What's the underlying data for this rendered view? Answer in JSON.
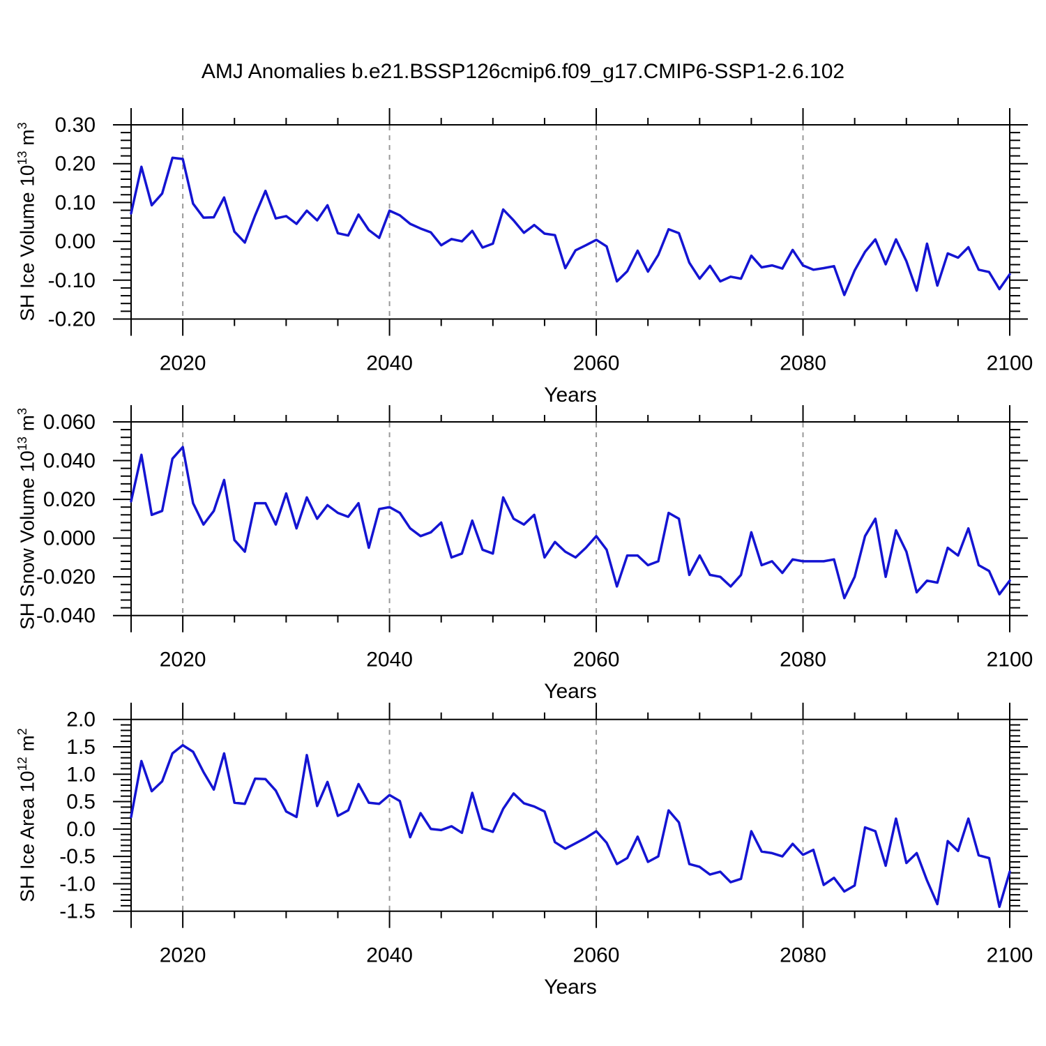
{
  "title": "AMJ Anomalies b.e21.BSSP126cmip6.f09_g17.CMIP6-SSP1-2.6.102",
  "xlabel": "Years",
  "line_color": "#1414d2",
  "gridline_color": "#999999",
  "frame_color": "#000000",
  "xlim": [
    2015,
    2100
  ],
  "x_major_ticks": [
    2020,
    2040,
    2060,
    2080,
    2100
  ],
  "x_minor_step": 5,
  "x_gridlines": [
    2020,
    2040,
    2060,
    2080
  ],
  "years": [
    2015,
    2016,
    2017,
    2018,
    2019,
    2020,
    2021,
    2022,
    2023,
    2024,
    2025,
    2026,
    2027,
    2028,
    2029,
    2030,
    2031,
    2032,
    2033,
    2034,
    2035,
    2036,
    2037,
    2038,
    2039,
    2040,
    2041,
    2042,
    2043,
    2044,
    2045,
    2046,
    2047,
    2048,
    2049,
    2050,
    2051,
    2052,
    2053,
    2054,
    2055,
    2056,
    2057,
    2058,
    2059,
    2060,
    2061,
    2062,
    2063,
    2064,
    2065,
    2066,
    2067,
    2068,
    2069,
    2070,
    2071,
    2072,
    2073,
    2074,
    2075,
    2076,
    2077,
    2078,
    2079,
    2080,
    2081,
    2082,
    2083,
    2084,
    2085,
    2086,
    2087,
    2088,
    2089,
    2090,
    2091,
    2092,
    2093,
    2094,
    2095,
    2096,
    2097,
    2098,
    2099,
    2100
  ],
  "chart_data": [
    {
      "type": "line",
      "ylabel": "SH Ice Volume 10^13 m^3",
      "ylabel_parts": {
        "text": "SH Ice Volume 10",
        "sup": "13",
        "text2": " m",
        "sup2": "3"
      },
      "xlabel": "Years",
      "ylim": [
        -0.2,
        0.3
      ],
      "ytick_labels": [
        "0.30",
        "0.20",
        "0.10",
        "0.00",
        "-0.10",
        "-0.20"
      ],
      "ytick_values": [
        0.3,
        0.2,
        0.1,
        0.0,
        -0.1,
        -0.2
      ],
      "y_minor_step": 0.02,
      "grid": "x-dashed",
      "legend": "none",
      "values": [
        0.072,
        0.192,
        0.093,
        0.123,
        0.215,
        0.212,
        0.097,
        0.061,
        0.062,
        0.113,
        0.025,
        -0.003,
        0.067,
        0.13,
        0.059,
        0.065,
        0.045,
        0.079,
        0.054,
        0.093,
        0.021,
        0.015,
        0.069,
        0.029,
        0.009,
        0.079,
        0.067,
        0.045,
        0.033,
        0.023,
        -0.01,
        0.006,
        0.0,
        0.027,
        -0.016,
        -0.006,
        0.082,
        0.054,
        0.022,
        0.042,
        0.02,
        0.016,
        -0.069,
        -0.023,
        -0.01,
        0.004,
        -0.013,
        -0.103,
        -0.077,
        -0.024,
        -0.078,
        -0.035,
        0.031,
        0.021,
        -0.055,
        -0.096,
        -0.063,
        -0.103,
        -0.091,
        -0.096,
        -0.037,
        -0.067,
        -0.062,
        -0.07,
        -0.022,
        -0.062,
        -0.073,
        -0.069,
        -0.064,
        -0.138,
        -0.075,
        -0.027,
        0.005,
        -0.059,
        0.005,
        -0.051,
        -0.127,
        -0.006,
        -0.114,
        -0.031,
        -0.042,
        -0.015,
        -0.073,
        -0.079,
        -0.123,
        -0.085
      ]
    },
    {
      "type": "line",
      "ylabel": "SH Snow Volume 10^13 m^3",
      "ylabel_parts": {
        "text": "SH Snow Volume 10",
        "sup": "13",
        "text2": " m",
        "sup2": "3"
      },
      "xlabel": "Years",
      "ylim": [
        -0.04,
        0.06
      ],
      "ytick_labels": [
        "0.060",
        "0.040",
        "0.020",
        "0.000",
        "-0.020",
        "-0.040"
      ],
      "ytick_values": [
        0.06,
        0.04,
        0.02,
        0.0,
        -0.02,
        -0.04
      ],
      "y_minor_step": 0.004,
      "grid": "x-dashed",
      "legend": "none",
      "values": [
        0.019,
        0.043,
        0.012,
        0.014,
        0.041,
        0.047,
        0.018,
        0.007,
        0.014,
        0.03,
        -0.001,
        -0.007,
        0.018,
        0.018,
        0.007,
        0.023,
        0.005,
        0.021,
        0.01,
        0.017,
        0.013,
        0.011,
        0.018,
        -0.005,
        0.015,
        0.016,
        0.013,
        0.005,
        0.001,
        0.003,
        0.008,
        -0.01,
        -0.008,
        0.009,
        -0.006,
        -0.008,
        0.021,
        0.01,
        0.007,
        0.012,
        -0.01,
        -0.002,
        -0.007,
        -0.01,
        -0.005,
        0.001,
        -0.006,
        -0.025,
        -0.009,
        -0.009,
        -0.014,
        -0.012,
        0.013,
        0.01,
        -0.019,
        -0.009,
        -0.019,
        -0.02,
        -0.025,
        -0.019,
        0.003,
        -0.014,
        -0.012,
        -0.018,
        -0.011,
        -0.012,
        -0.012,
        -0.012,
        -0.011,
        -0.031,
        -0.02,
        0.001,
        0.01,
        -0.02,
        0.004,
        -0.007,
        -0.028,
        -0.022,
        -0.023,
        -0.005,
        -0.009,
        0.005,
        -0.014,
        -0.017,
        -0.029,
        -0.022
      ]
    },
    {
      "type": "line",
      "ylabel": "SH Ice Area 10^12 m^2",
      "ylabel_parts": {
        "text": "SH Ice Area 10",
        "sup": "12",
        "text2": " m",
        "sup2": "2"
      },
      "xlabel": "Years",
      "ylim": [
        -1.5,
        2.0
      ],
      "ytick_labels": [
        "2.0",
        "1.5",
        "1.0",
        "0.5",
        "0.0",
        "-0.5",
        "-1.0",
        "-1.5"
      ],
      "ytick_values": [
        2.0,
        1.5,
        1.0,
        0.5,
        0.0,
        -0.5,
        -1.0,
        -1.5
      ],
      "y_minor_step": 0.1,
      "grid": "x-dashed",
      "legend": "none",
      "values": [
        0.22,
        1.24,
        0.69,
        0.87,
        1.38,
        1.53,
        1.41,
        1.04,
        0.72,
        1.38,
        0.48,
        0.46,
        0.92,
        0.91,
        0.7,
        0.32,
        0.22,
        1.35,
        0.42,
        0.86,
        0.24,
        0.34,
        0.82,
        0.48,
        0.46,
        0.62,
        0.51,
        -0.15,
        0.29,
        0.0,
        -0.02,
        0.05,
        -0.07,
        0.66,
        0.01,
        -0.05,
        0.37,
        0.65,
        0.47,
        0.41,
        0.32,
        -0.24,
        -0.36,
        -0.26,
        -0.16,
        -0.04,
        -0.25,
        -0.64,
        -0.53,
        -0.14,
        -0.6,
        -0.5,
        0.34,
        0.12,
        -0.64,
        -0.69,
        -0.83,
        -0.78,
        -0.97,
        -0.91,
        -0.04,
        -0.41,
        -0.44,
        -0.5,
        -0.27,
        -0.47,
        -0.38,
        -1.02,
        -0.89,
        -1.14,
        -1.03,
        0.03,
        -0.04,
        -0.67,
        0.19,
        -0.62,
        -0.44,
        -0.94,
        -1.37,
        -0.22,
        -0.4,
        0.19,
        -0.48,
        -0.53,
        -1.42,
        -0.78
      ]
    }
  ]
}
